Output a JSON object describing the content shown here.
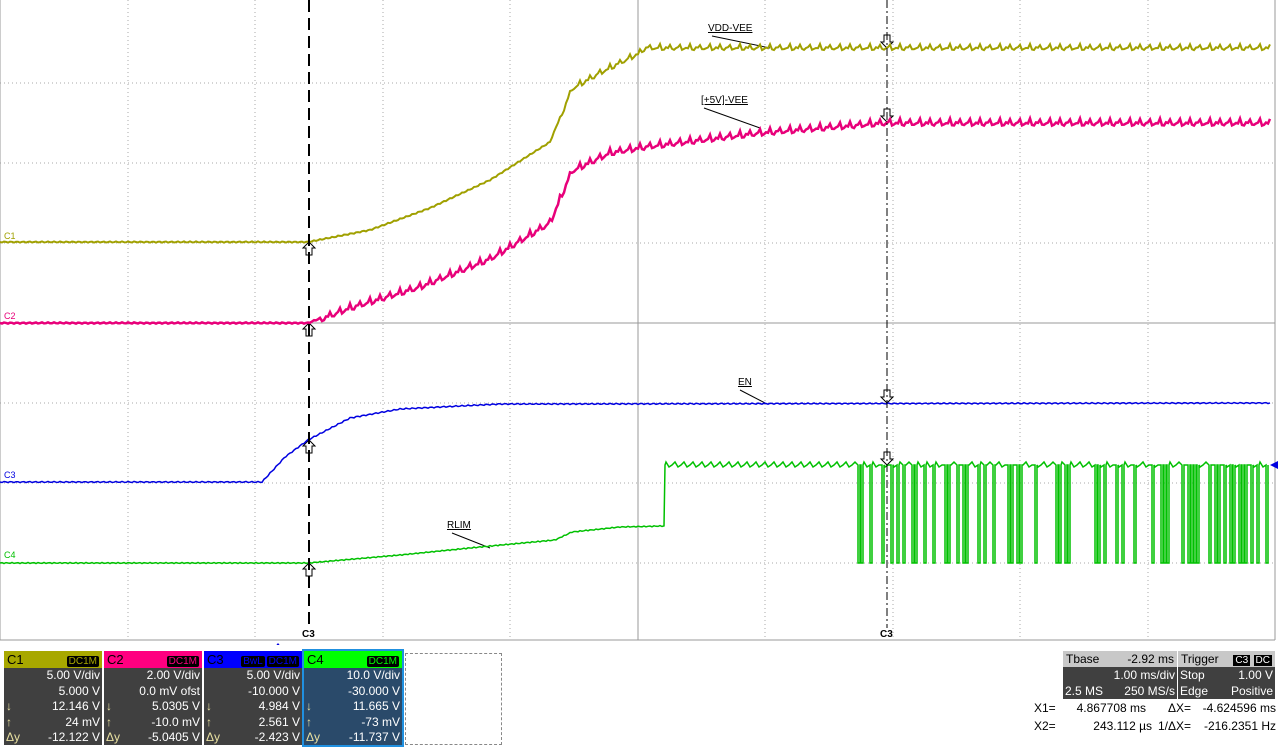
{
  "channels": [
    {
      "id": "C1",
      "coupling": "DC1M",
      "vdiv": "5.00 V/div",
      "offset": "5.000 V",
      "down": "12.146 V",
      "up": "24 mV",
      "dy": "-12.122 V",
      "color": "#a0a000",
      "trace_label": "VDD-VEE"
    },
    {
      "id": "C2",
      "coupling": "DC1M",
      "vdiv": "2.00 V/div",
      "offset": "0.0 mV ofst",
      "down": "5.0305 V",
      "up": "-10.0 mV",
      "dy": "-5.0405 V",
      "color": "#e8007a",
      "trace_label": "[+5V]-VEE"
    },
    {
      "id": "C3",
      "bwl": "BwL",
      "coupling": "DC1M",
      "vdiv": "5.00 V/div",
      "offset": "-10.000 V",
      "down": "4.984 V",
      "up": "2.561 V",
      "dy": "-2.423 V",
      "color": "#0000e0",
      "trace_label": "EN"
    },
    {
      "id": "C4",
      "coupling": "DC1M",
      "vdiv": "10.0 V/div",
      "offset": "-30.000 V",
      "down": "11.665 V",
      "up": "-73 mV",
      "dy": "-11.737 V",
      "color": "#00e000",
      "trace_label": "RLIM"
    }
  ],
  "symbols": {
    "down": "↓",
    "up": "↑",
    "dy": "Δy"
  },
  "cursor_labels": [
    "C3",
    "C3"
  ],
  "timebase": {
    "label": "Tbase",
    "delay": "-2.92 ms",
    "tdiv": "1.00 ms/div",
    "samples": "2.5 MS",
    "rate": "250 MS/s"
  },
  "trigger": {
    "label": "Trigger",
    "source": "C3",
    "coupling": "DC",
    "mode": "Stop",
    "level": "1.00 V",
    "type": "Edge",
    "slope": "Positive"
  },
  "cursors": {
    "x1_label": "X1=",
    "x1": "4.867708 ms",
    "dx_label": "ΔX=",
    "dx": "-4.624596 ms",
    "x2_label": "X2=",
    "x2": "243.112 µs",
    "inv_label": "1/ΔX=",
    "inv": "-216.2351 Hz"
  }
}
